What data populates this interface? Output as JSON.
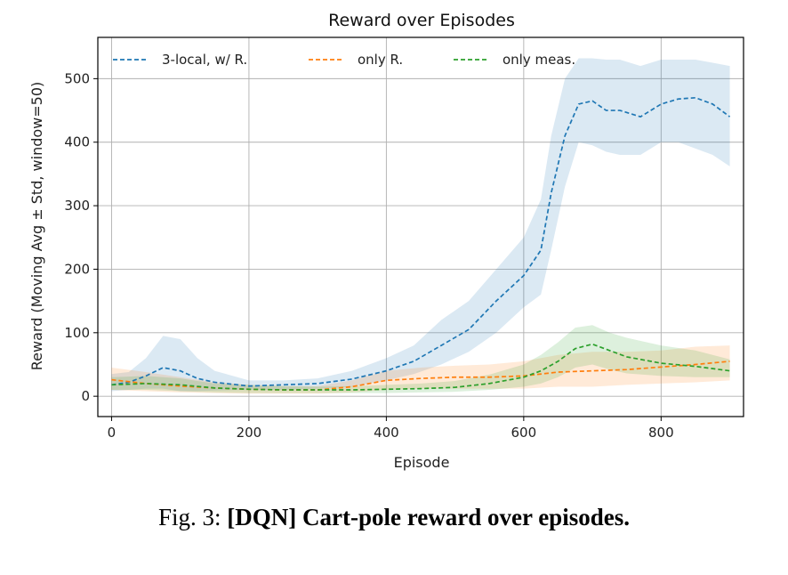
{
  "chart_data": {
    "type": "line",
    "title": "Reward over Episodes",
    "xlabel": "Episode",
    "ylabel": "Reward (Moving Avg ± Std, window=50)",
    "xlim": [
      -20,
      920
    ],
    "ylim": [
      -32,
      565
    ],
    "xticks": [
      0,
      200,
      400,
      600,
      800
    ],
    "yticks": [
      0,
      100,
      200,
      300,
      400,
      500
    ],
    "grid": true,
    "legend_position": "top, horizontal",
    "series": [
      {
        "name": "3-local, w/ R.",
        "color": "#1f77b4",
        "x": [
          0,
          25,
          50,
          75,
          100,
          125,
          150,
          200,
          250,
          300,
          350,
          400,
          440,
          480,
          520,
          560,
          600,
          625,
          640,
          660,
          680,
          700,
          720,
          740,
          770,
          800,
          825,
          850,
          875,
          900
        ],
        "mean": [
          18,
          22,
          32,
          45,
          40,
          28,
          22,
          16,
          18,
          20,
          27,
          40,
          55,
          80,
          105,
          150,
          190,
          230,
          320,
          410,
          460,
          465,
          450,
          450,
          440,
          460,
          468,
          470,
          460,
          440
        ],
        "lower": [
          8,
          10,
          12,
          12,
          8,
          8,
          9,
          10,
          10,
          12,
          15,
          25,
          35,
          50,
          70,
          100,
          140,
          160,
          230,
          330,
          400,
          395,
          385,
          380,
          380,
          400,
          400,
          390,
          380,
          362
        ],
        "upper": [
          35,
          38,
          60,
          95,
          90,
          60,
          40,
          25,
          25,
          28,
          40,
          60,
          80,
          120,
          150,
          200,
          250,
          310,
          410,
          500,
          532,
          532,
          530,
          530,
          520,
          530,
          530,
          530,
          525,
          520
        ]
      },
      {
        "name": "only R.",
        "color": "#ff7f0e",
        "x": [
          0,
          50,
          100,
          150,
          200,
          250,
          300,
          350,
          400,
          450,
          500,
          550,
          600,
          650,
          700,
          750,
          800,
          850,
          900
        ],
        "mean": [
          26,
          20,
          16,
          13,
          11,
          10,
          10,
          15,
          25,
          28,
          30,
          30,
          32,
          38,
          40,
          42,
          46,
          50,
          55
        ],
        "lower": [
          10,
          8,
          6,
          5,
          4,
          4,
          4,
          6,
          10,
          12,
          12,
          12,
          12,
          15,
          15,
          18,
          20,
          22,
          25
        ],
        "upper": [
          45,
          38,
          30,
          22,
          18,
          16,
          16,
          25,
          40,
          45,
          48,
          50,
          55,
          65,
          70,
          70,
          72,
          78,
          80
        ]
      },
      {
        "name": "only meas.",
        "color": "#2ca02c",
        "x": [
          0,
          50,
          100,
          150,
          200,
          250,
          300,
          350,
          400,
          450,
          500,
          550,
          600,
          625,
          650,
          675,
          700,
          725,
          750,
          800,
          850,
          900
        ],
        "mean": [
          18,
          20,
          18,
          13,
          11,
          10,
          10,
          10,
          11,
          12,
          14,
          20,
          30,
          40,
          55,
          75,
          82,
          72,
          62,
          52,
          47,
          40
        ],
        "lower": [
          10,
          10,
          8,
          6,
          5,
          5,
          5,
          5,
          5,
          6,
          7,
          10,
          15,
          20,
          30,
          45,
          50,
          42,
          36,
          32,
          30,
          30
        ],
        "upper": [
          30,
          32,
          28,
          20,
          18,
          16,
          15,
          16,
          18,
          20,
          24,
          34,
          50,
          65,
          85,
          108,
          112,
          100,
          92,
          80,
          72,
          58
        ]
      }
    ]
  },
  "caption": {
    "prefix": "Fig. 3: ",
    "bold": "[DQN] Cart-pole reward over episodes."
  }
}
